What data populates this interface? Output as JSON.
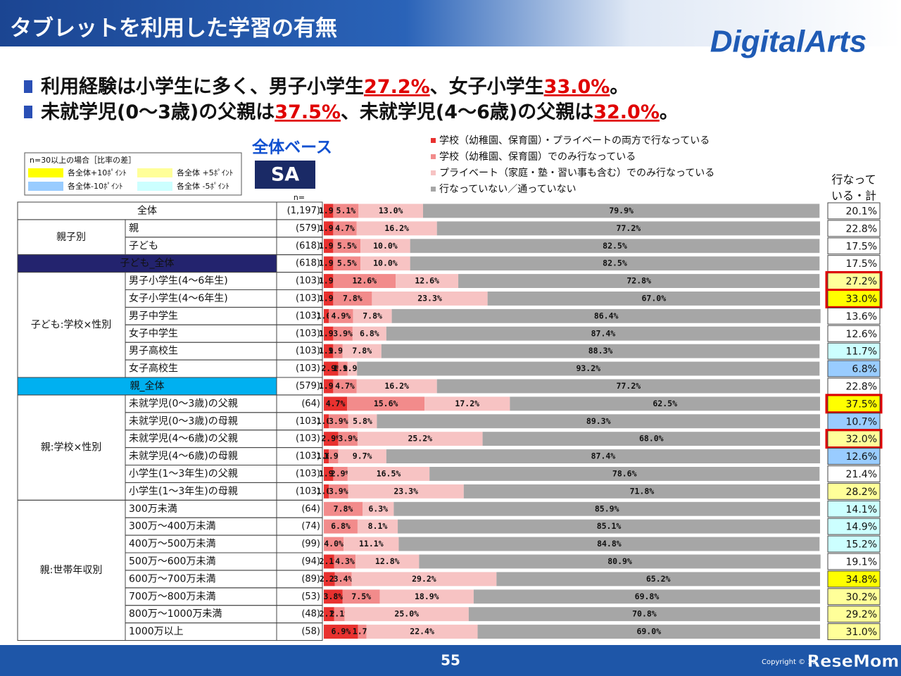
{
  "header": {
    "title": "タブレットを利用した学習の有無",
    "logo": "DigitalArts"
  },
  "bullets": [
    {
      "segments": [
        {
          "text": "利用経験は小学生に多く、男子小学生",
          "emphasis": false
        },
        {
          "text": "27.2%",
          "emphasis": true
        },
        {
          "text": "、女子小学生",
          "emphasis": false
        },
        {
          "text": "33.0%",
          "emphasis": true
        },
        {
          "text": "。",
          "emphasis": false
        }
      ]
    },
    {
      "segments": [
        {
          "text": "未就学児(0～3歳)の父親は",
          "emphasis": false
        },
        {
          "text": "37.5%",
          "emphasis": true
        },
        {
          "text": "、未就学児(4～6歳)の父親は",
          "emphasis": false
        },
        {
          "text": "32.0%",
          "emphasis": true
        },
        {
          "text": "。",
          "emphasis": false
        }
      ]
    }
  ],
  "base_label": "全体ベース",
  "answer_type": "SA",
  "diff_legend": {
    "title": "n=30以上の場合［比率の差］",
    "items": [
      {
        "label": "各全体+10ﾎﾟｲﾝﾄ",
        "color": "#ffff00"
      },
      {
        "label": "各全体 +5ﾎﾟｲﾝﾄ",
        "color": "#ffff99"
      },
      {
        "label": "各全体-10ﾎﾟｲﾝﾄ",
        "color": "#99ccff"
      },
      {
        "label": "各全体 -5ﾎﾟｲﾝﾄ",
        "color": "#ccffff"
      }
    ]
  },
  "chart_data": {
    "type": "stacked_barh",
    "n_header": "n=",
    "categories": [
      "全体",
      "親",
      "子ども",
      "子ども_全体",
      "男子小学生(4～6年生)",
      "女子小学生(4～6年生)",
      "男子中学生",
      "女子中学生",
      "男子高校生",
      "女子高校生",
      "親_全体",
      "未就学児(0～3歳)の父親",
      "未就学児(0～3歳)の母親",
      "未就学児(4～6歳)の父親",
      "未就学児(4～6歳)の母親",
      "小学生(1～3年生)の父親",
      "小学生(1～3年生)の母親",
      "300万未満",
      "300万～400万未満",
      "400万～500万未満",
      "500万～600万未満",
      "600万～700万未満",
      "700万～800万未満",
      "800万～1000万未満",
      "1000万以上"
    ],
    "groups": [
      null,
      "親子別",
      "親子別",
      null,
      "子ども:学校×性別",
      "子ども:学校×性別",
      "子ども:学校×性別",
      "子ども:学校×性別",
      "子ども:学校×性別",
      "子ども:学校×性別",
      null,
      "親:学校×性別",
      "親:学校×性別",
      "親:学校×性別",
      "親:学校×性別",
      "親:学校×性別",
      "親:学校×性別",
      "親:世帯年収別",
      "親:世帯年収別",
      "親:世帯年収別",
      "親:世帯年収別",
      "親:世帯年収別",
      "親:世帯年収別",
      "親:世帯年収別",
      "親:世帯年収別"
    ],
    "row_fills": [
      null,
      null,
      null,
      "#23236e",
      null,
      null,
      null,
      null,
      null,
      null,
      "#00b0f0",
      null,
      null,
      null,
      null,
      null,
      null,
      null,
      null,
      null,
      null,
      null,
      null,
      null,
      null
    ],
    "n": [
      "(1,197)",
      "(579)",
      "(618)",
      "(618)",
      "(103)",
      "(103)",
      "(103)",
      "(103)",
      "(103)",
      "(103)",
      "(579)",
      "(64)",
      "(103)",
      "(103)",
      "(103)",
      "(103)",
      "(103)",
      "(64)",
      "(74)",
      "(99)",
      "(94)",
      "(89)",
      "(53)",
      "(48)",
      "(58)"
    ],
    "xlim": [
      0,
      100
    ],
    "series": [
      {
        "name": "学校（幼稚園、保育園）・プライベートの両方で行なっている",
        "color": "#e8312f",
        "values": [
          1.9,
          1.9,
          1.9,
          1.9,
          1.9,
          1.9,
          1.0,
          1.9,
          1.9,
          2.9,
          1.9,
          4.7,
          1.0,
          2.9,
          1.0,
          1.9,
          1.0,
          0,
          0,
          0,
          2.1,
          2.2,
          3.8,
          2.1,
          6.9
        ],
        "value_labels": [
          "1.9%",
          "1.9%",
          "1.9%",
          "1.9%",
          "1.9%",
          "1.9%",
          "1.0%",
          "1.9%",
          "1.9%",
          "2.9%",
          "1.9%",
          "4.7%",
          "1.0%",
          "2.9%",
          "1.0%",
          "1.9%",
          "1.0%",
          null,
          null,
          null,
          "2.1%",
          "2.2%",
          "3.8%",
          "2.1%",
          "6.9%"
        ]
      },
      {
        "name": "学校（幼稚園、保育園）でのみ行なっている",
        "color": "#f28b8b",
        "values": [
          5.1,
          4.7,
          5.5,
          5.5,
          12.6,
          7.8,
          4.9,
          3.9,
          1.9,
          1.9,
          4.7,
          15.6,
          3.9,
          3.9,
          1.9,
          2.9,
          3.9,
          7.8,
          6.8,
          4.0,
          4.3,
          3.4,
          7.5,
          2.1,
          1.7
        ],
        "value_labels": [
          "5.1%",
          "4.7%",
          "5.5%",
          "5.5%",
          "12.6%",
          "7.8%",
          "4.9%",
          "3.9%",
          "1.9%",
          "1.9%",
          "4.7%",
          "15.6%",
          "3.9%",
          "3.9%",
          "1.9%",
          "2.9%",
          "3.9%",
          "7.8%",
          "6.8%",
          "4.0%",
          "4.3%",
          "3.4%",
          "7.5%",
          "2.1%",
          "1.7%"
        ]
      },
      {
        "name": "プライベート（家庭・塾・習い事も含む）でのみ行なっている",
        "color": "#f7c3c3",
        "values": [
          13.0,
          16.2,
          10.0,
          10.0,
          12.6,
          23.3,
          7.8,
          6.8,
          7.8,
          1.9,
          16.2,
          17.2,
          5.8,
          25.2,
          9.7,
          16.5,
          23.3,
          6.3,
          8.1,
          11.1,
          12.8,
          29.2,
          18.9,
          25.0,
          22.4
        ],
        "value_labels": [
          "13.0%",
          "16.2%",
          "10.0%",
          "10.0%",
          "12.6%",
          "23.3%",
          "7.8%",
          "6.8%",
          "7.8%",
          "1.9%",
          "16.2%",
          "17.2%",
          "5.8%",
          "25.2%",
          "9.7%",
          "16.5%",
          "23.3%",
          "6.3%",
          "8.1%",
          "11.1%",
          "12.8%",
          "29.2%",
          "18.9%",
          "25.0%",
          "22.4%"
        ]
      },
      {
        "name": "行なっていない／通っていない",
        "color": "#a6a6a6",
        "values": [
          79.9,
          77.2,
          82.5,
          82.5,
          72.8,
          67.0,
          86.4,
          87.4,
          88.3,
          93.2,
          77.2,
          62.5,
          89.3,
          68.0,
          87.4,
          78.6,
          71.8,
          85.9,
          85.1,
          84.8,
          80.9,
          65.2,
          69.8,
          70.8,
          69.0
        ],
        "value_labels": [
          "79.9%",
          "77.2%",
          "82.5%",
          "82.5%",
          "72.8%",
          "67.0%",
          "86.4%",
          "87.4%",
          "88.3%",
          "93.2%",
          "77.2%",
          "62.5%",
          "89.3%",
          "68.0%",
          "87.4%",
          "78.6%",
          "71.8%",
          "85.9%",
          "85.1%",
          "84.8%",
          "80.9%",
          "65.2%",
          "69.8%",
          "70.8%",
          "69.0%"
        ]
      }
    ],
    "totals": {
      "header": [
        "行なって",
        "いる・計"
      ],
      "values": [
        20.1,
        22.8,
        17.5,
        17.5,
        27.2,
        33.0,
        13.6,
        12.6,
        11.7,
        6.8,
        22.8,
        37.5,
        10.7,
        32.0,
        12.6,
        21.4,
        28.2,
        14.1,
        14.9,
        15.2,
        19.1,
        34.8,
        30.2,
        29.2,
        31.0
      ],
      "value_labels": [
        "20.1%",
        "22.8%",
        "17.5%",
        "17.5%",
        "27.2%",
        "33.0%",
        "13.6%",
        "12.6%",
        "11.7%",
        "6.8%",
        "22.8%",
        "37.5%",
        "10.7%",
        "32.0%",
        "12.6%",
        "21.4%",
        "28.2%",
        "14.1%",
        "14.9%",
        "15.2%",
        "19.1%",
        "34.8%",
        "30.2%",
        "29.2%",
        "31.0%"
      ],
      "fills": [
        null,
        null,
        null,
        null,
        "#ffff99",
        "#ffff00",
        null,
        null,
        "#ccffff",
        "#99ccff",
        null,
        "#ffff00",
        "#99ccff",
        "#ffff99",
        "#99ccff",
        null,
        "#ffff99",
        "#ccffff",
        "#ccffff",
        "#ccffff",
        null,
        "#ffff00",
        "#ffff99",
        "#ffff99",
        "#ffff99"
      ],
      "outlined": [
        false,
        false,
        false,
        false,
        true,
        true,
        false,
        false,
        false,
        false,
        false,
        true,
        false,
        true,
        false,
        false,
        false,
        false,
        false,
        false,
        false,
        false,
        false,
        false,
        false
      ],
      "outline_color": "#e00000"
    }
  },
  "footer": {
    "page": "55",
    "copyright": "Copyright © 20",
    "watermark": "ReseMom"
  }
}
